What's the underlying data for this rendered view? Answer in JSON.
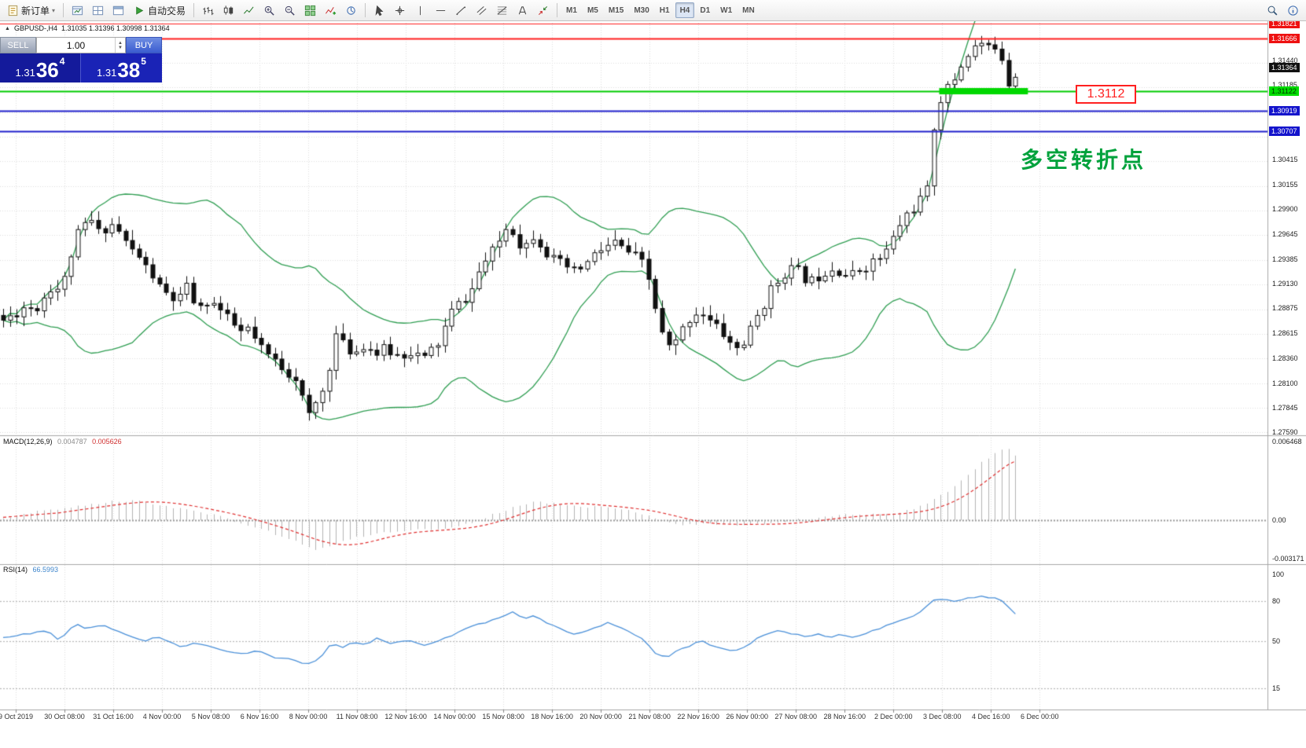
{
  "toolbar": {
    "new_order_label": "新订单",
    "autotrade_label": "自动交易",
    "left_icons": [
      {
        "name": "new-chart-icon",
        "type": "chartwin"
      },
      {
        "name": "profiles-icon",
        "type": "layout"
      },
      {
        "name": "data-window-icon",
        "type": "window"
      }
    ],
    "chart_tools": [
      {
        "name": "bar-chart-icon",
        "type": "bars"
      },
      {
        "name": "candlestick-chart-icon",
        "type": "candles"
      },
      {
        "name": "line-chart-icon",
        "type": "line"
      },
      {
        "name": "zoom-in-icon",
        "type": "zoomin"
      },
      {
        "name": "zoom-out-icon",
        "type": "zoomout"
      },
      {
        "name": "tile-windows-icon",
        "type": "grid"
      },
      {
        "name": "indicators-icon",
        "type": "indicator"
      },
      {
        "name": "periods-icon",
        "type": "cycles"
      }
    ],
    "draw_tools": [
      {
        "name": "cursor-icon",
        "type": "cursor"
      },
      {
        "name": "crosshair-icon",
        "type": "crosshair"
      },
      {
        "name": "vertical-line-icon",
        "type": "vline"
      },
      {
        "name": "horizontal-line-icon",
        "type": "hline"
      },
      {
        "name": "trendline-icon",
        "type": "trend"
      },
      {
        "name": "equidistant-channel-icon",
        "type": "channel"
      },
      {
        "name": "fibonacci-icon",
        "type": "fib"
      },
      {
        "name": "text-icon",
        "type": "text"
      },
      {
        "name": "arrows-icon",
        "type": "arrows"
      }
    ],
    "timeframes": [
      "M1",
      "M5",
      "M15",
      "M30",
      "H1",
      "H4",
      "D1",
      "W1",
      "MN"
    ],
    "active_timeframe": "H4",
    "right_icons": [
      {
        "name": "search-icon",
        "type": "search"
      },
      {
        "name": "about-icon",
        "type": "about"
      }
    ]
  },
  "symbol_header": {
    "symbol": "GBPUSD-,H4",
    "ohlc": "1.31035 1.31396 1.30998 1.31364"
  },
  "trade_panel": {
    "sell_button": "SELL",
    "buy_button": "BUY",
    "lot_value": "1.00",
    "sell_price": {
      "big": "1.31",
      "pips": "36",
      "pipette": "4"
    },
    "buy_price": {
      "big": "1.31",
      "pips": "38",
      "pipette": "5"
    }
  },
  "annotation": {
    "text": "多空转折点"
  },
  "price_callout": {
    "text": "1.3112"
  },
  "macd_label": {
    "name": "MACD(12,26,9)",
    "main_value": "0.004787",
    "signal_value": "0.005626"
  },
  "rsi_label": {
    "name": "RSI(14)",
    "value": "66.5993"
  },
  "colors": {
    "bollinger": "#2f9e52",
    "candle_up": "#ffffff",
    "candle_down": "#111111",
    "candle_border": "#111111",
    "macd_hist": "#b4b4b4",
    "macd_signal": "#e03030",
    "rsi_line": "#4a90d9",
    "grid": "#dedede",
    "green_box": "#00d800",
    "divider": "#a8a8a8"
  },
  "chart_data": {
    "type": "candlestick",
    "symbol": "GBPUSD-",
    "timeframe": "H4",
    "ohlc": {
      "open": 1.31035,
      "high": 1.31396,
      "low": 1.30998,
      "close": 1.31364
    },
    "price_axis": {
      "min": 1.2756,
      "max": 1.3183,
      "ticks": [
        "1.31440",
        "1.31185",
        "1.30415",
        "1.30155",
        "1.29900",
        "1.29645",
        "1.29385",
        "1.29130",
        "1.28875",
        "1.28615",
        "1.28360",
        "1.28100",
        "1.27845",
        "1.27590"
      ],
      "line_labels": [
        {
          "text": "1.31821",
          "price": 1.31821,
          "bg": "#ee1111",
          "fg": "#ffffff"
        },
        {
          "text": "1.31666",
          "price": 1.31666,
          "bg": "#ee1111",
          "fg": "#ffffff"
        },
        {
          "text": "1.31364",
          "price": 1.31364,
          "bg": "#111111",
          "fg": "#ffffff"
        },
        {
          "text": "1.31122",
          "price": 1.31122,
          "bg": "#00dd00",
          "fg": "#003300"
        },
        {
          "text": "1.30919",
          "price": 1.30919,
          "bg": "#1414cc",
          "fg": "#ffffff"
        },
        {
          "text": "1.30707",
          "price": 1.30707,
          "bg": "#1414cc",
          "fg": "#ffffff"
        }
      ]
    },
    "hlines": [
      {
        "price": 1.31821,
        "color": "#ff2020",
        "width": 1
      },
      {
        "price": 1.31666,
        "color": "#ff2020",
        "width": 2
      },
      {
        "price": 1.31122,
        "color": "#00cc00",
        "width": 2
      },
      {
        "price": 1.30919,
        "color": "#2020cc",
        "width": 2
      },
      {
        "price": 1.30707,
        "color": "#2020cc",
        "width": 2
      }
    ],
    "green_box": {
      "price": 1.31122,
      "t1": 0.741,
      "t2": 0.811
    },
    "close_path": [
      [
        0.003,
        1.2875
      ],
      [
        0.012,
        1.2882
      ],
      [
        0.02,
        1.289
      ],
      [
        0.028,
        1.2886
      ],
      [
        0.035,
        1.29
      ],
      [
        0.042,
        1.2912
      ],
      [
        0.048,
        1.2905
      ],
      [
        0.053,
        1.2928
      ],
      [
        0.059,
        1.2958
      ],
      [
        0.065,
        1.2972
      ],
      [
        0.072,
        1.2978
      ],
      [
        0.078,
        1.2965
      ],
      [
        0.084,
        1.2972
      ],
      [
        0.09,
        1.2975
      ],
      [
        0.096,
        1.2962
      ],
      [
        0.102,
        1.295
      ],
      [
        0.109,
        1.2942
      ],
      [
        0.115,
        1.293
      ],
      [
        0.121,
        1.292
      ],
      [
        0.127,
        1.2906
      ],
      [
        0.134,
        1.29
      ],
      [
        0.14,
        1.2892
      ],
      [
        0.146,
        1.2912
      ],
      [
        0.152,
        1.2896
      ],
      [
        0.158,
        1.2886
      ],
      [
        0.164,
        1.2896
      ],
      [
        0.171,
        1.289
      ],
      [
        0.177,
        1.288
      ],
      [
        0.183,
        1.2872
      ],
      [
        0.189,
        1.2862
      ],
      [
        0.196,
        1.2866
      ],
      [
        0.202,
        1.2852
      ],
      [
        0.208,
        1.2842
      ],
      [
        0.214,
        1.2836
      ],
      [
        0.22,
        1.283
      ],
      [
        0.226,
        1.2822
      ],
      [
        0.233,
        1.2816
      ],
      [
        0.239,
        1.2792
      ],
      [
        0.243,
        1.2774
      ],
      [
        0.248,
        1.2786
      ],
      [
        0.254,
        1.28
      ],
      [
        0.259,
        1.2822
      ],
      [
        0.264,
        1.2862
      ],
      [
        0.269,
        1.2852
      ],
      [
        0.274,
        1.2846
      ],
      [
        0.279,
        1.284
      ],
      [
        0.286,
        1.285
      ],
      [
        0.292,
        1.2845
      ],
      [
        0.298,
        1.284
      ],
      [
        0.304,
        1.2846
      ],
      [
        0.31,
        1.284
      ],
      [
        0.316,
        1.2838
      ],
      [
        0.323,
        1.2843
      ],
      [
        0.329,
        1.284
      ],
      [
        0.335,
        1.2835
      ],
      [
        0.341,
        1.2846
      ],
      [
        0.347,
        1.2852
      ],
      [
        0.354,
        1.288
      ],
      [
        0.36,
        1.289
      ],
      [
        0.366,
        1.2896
      ],
      [
        0.372,
        1.2906
      ],
      [
        0.378,
        1.2926
      ],
      [
        0.385,
        1.294
      ],
      [
        0.391,
        1.295
      ],
      [
        0.397,
        1.2966
      ],
      [
        0.402,
        1.2976
      ],
      [
        0.407,
        1.296
      ],
      [
        0.412,
        1.295
      ],
      [
        0.417,
        1.2956
      ],
      [
        0.422,
        1.2966
      ],
      [
        0.428,
        1.295
      ],
      [
        0.434,
        1.294
      ],
      [
        0.44,
        1.2935
      ],
      [
        0.447,
        1.293
      ],
      [
        0.453,
        1.2925
      ],
      [
        0.459,
        1.293
      ],
      [
        0.465,
        1.2936
      ],
      [
        0.471,
        1.2946
      ],
      [
        0.478,
        1.295
      ],
      [
        0.484,
        1.2956
      ],
      [
        0.49,
        1.295
      ],
      [
        0.496,
        1.2945
      ],
      [
        0.502,
        1.294
      ],
      [
        0.509,
        1.293
      ],
      [
        0.515,
        1.29
      ],
      [
        0.52,
        1.287
      ],
      [
        0.525,
        1.285
      ],
      [
        0.53,
        1.2845
      ],
      [
        0.535,
        1.2856
      ],
      [
        0.54,
        1.287
      ],
      [
        0.546,
        1.288
      ],
      [
        0.552,
        1.2886
      ],
      [
        0.558,
        1.2876
      ],
      [
        0.564,
        1.287
      ],
      [
        0.571,
        1.286
      ],
      [
        0.577,
        1.285
      ],
      [
        0.583,
        1.2845
      ],
      [
        0.589,
        1.2856
      ],
      [
        0.596,
        1.2876
      ],
      [
        0.602,
        1.289
      ],
      [
        0.608,
        1.2906
      ],
      [
        0.614,
        1.2916
      ],
      [
        0.62,
        1.2926
      ],
      [
        0.627,
        1.293
      ],
      [
        0.633,
        1.292
      ],
      [
        0.639,
        1.2915
      ],
      [
        0.645,
        1.292
      ],
      [
        0.651,
        1.2926
      ],
      [
        0.658,
        1.293
      ],
      [
        0.664,
        1.2925
      ],
      [
        0.67,
        1.292
      ],
      [
        0.676,
        1.2926
      ],
      [
        0.682,
        1.293
      ],
      [
        0.689,
        1.2936
      ],
      [
        0.695,
        1.294
      ],
      [
        0.701,
        1.295
      ],
      [
        0.707,
        1.2966
      ],
      [
        0.713,
        1.2982
      ],
      [
        0.72,
        1.299
      ],
      [
        0.726,
        1.3
      ],
      [
        0.732,
        1.301
      ],
      [
        0.738,
        1.3092
      ],
      [
        0.744,
        1.311
      ],
      [
        0.751,
        1.312
      ],
      [
        0.757,
        1.3136
      ],
      [
        0.763,
        1.315
      ],
      [
        0.769,
        1.3158
      ],
      [
        0.775,
        1.3162
      ],
      [
        0.78,
        1.3155
      ],
      [
        0.785,
        1.316
      ],
      [
        0.79,
        1.315
      ],
      [
        0.795,
        1.312
      ],
      [
        0.8,
        1.3128
      ],
      [
        0.806,
        1.3136
      ]
    ],
    "macd": {
      "range_top": 0.006468,
      "range_bottom": -0.003171,
      "axis": [
        {
          "text": "0.006468",
          "value": 0.006468
        },
        {
          "text": "0.00",
          "value": 0
        },
        {
          "text": "-0.003171",
          "value": -0.003171
        }
      ],
      "path": [
        [
          0.0,
          0.0002
        ],
        [
          0.03,
          0.0007
        ],
        [
          0.06,
          0.0011
        ],
        [
          0.085,
          0.0015
        ],
        [
          0.1,
          0.0016
        ],
        [
          0.115,
          0.0015
        ],
        [
          0.13,
          0.0012
        ],
        [
          0.15,
          0.0008
        ],
        [
          0.165,
          0.0005
        ],
        [
          0.18,
          0.0001
        ],
        [
          0.195,
          -0.0004
        ],
        [
          0.21,
          -0.0009
        ],
        [
          0.225,
          -0.0014
        ],
        [
          0.24,
          -0.0021
        ],
        [
          0.25,
          -0.0024
        ],
        [
          0.262,
          -0.0021
        ],
        [
          0.275,
          -0.0016
        ],
        [
          0.29,
          -0.0012
        ],
        [
          0.305,
          -0.001
        ],
        [
          0.32,
          -0.0008
        ],
        [
          0.335,
          -0.0008
        ],
        [
          0.35,
          -0.0007
        ],
        [
          0.365,
          -0.0004
        ],
        [
          0.38,
          0.0001
        ],
        [
          0.395,
          0.0007
        ],
        [
          0.405,
          0.0011
        ],
        [
          0.415,
          0.0014
        ],
        [
          0.425,
          0.0015
        ],
        [
          0.435,
          0.0014
        ],
        [
          0.45,
          0.0013
        ],
        [
          0.465,
          0.0011
        ],
        [
          0.48,
          0.001
        ],
        [
          0.495,
          0.0008
        ],
        [
          0.505,
          0.0006
        ],
        [
          0.515,
          0.0003
        ],
        [
          0.525,
          -0.0001
        ],
        [
          0.535,
          -0.0003
        ],
        [
          0.545,
          -0.0004
        ],
        [
          0.56,
          -0.0003
        ],
        [
          0.575,
          -0.0003
        ],
        [
          0.59,
          -0.0004
        ],
        [
          0.605,
          -0.0003
        ],
        [
          0.62,
          -0.0001
        ],
        [
          0.635,
          0.0001
        ],
        [
          0.65,
          0.0003
        ],
        [
          0.665,
          0.0004
        ],
        [
          0.68,
          0.0005
        ],
        [
          0.695,
          0.0005
        ],
        [
          0.71,
          0.0007
        ],
        [
          0.722,
          0.001
        ],
        [
          0.734,
          0.0015
        ],
        [
          0.745,
          0.0022
        ],
        [
          0.755,
          0.003
        ],
        [
          0.765,
          0.0039
        ],
        [
          0.775,
          0.0048
        ],
        [
          0.785,
          0.0055
        ],
        [
          0.792,
          0.006
        ],
        [
          0.797,
          0.0058
        ],
        [
          0.801,
          0.0053
        ],
        [
          0.806,
          0.0048
        ]
      ]
    },
    "rsi": {
      "axis": [
        {
          "text": "100",
          "value": 100
        },
        {
          "text": "80",
          "value": 80
        },
        {
          "text": "50",
          "value": 50
        },
        {
          "text": "15",
          "value": 15
        }
      ],
      "levels": [
        80,
        50,
        15
      ],
      "path": [
        [
          0.0,
          52
        ],
        [
          0.019,
          55
        ],
        [
          0.037,
          58
        ],
        [
          0.047,
          50
        ],
        [
          0.059,
          63
        ],
        [
          0.068,
          60
        ],
        [
          0.081,
          62
        ],
        [
          0.099,
          55
        ],
        [
          0.112,
          50
        ],
        [
          0.124,
          53
        ],
        [
          0.143,
          46
        ],
        [
          0.155,
          49
        ],
        [
          0.174,
          44
        ],
        [
          0.192,
          40
        ],
        [
          0.205,
          43
        ],
        [
          0.217,
          38
        ],
        [
          0.23,
          36
        ],
        [
          0.242,
          33
        ],
        [
          0.251,
          36
        ],
        [
          0.261,
          48
        ],
        [
          0.27,
          45
        ],
        [
          0.279,
          50
        ],
        [
          0.288,
          47
        ],
        [
          0.298,
          52
        ],
        [
          0.31,
          48
        ],
        [
          0.323,
          51
        ],
        [
          0.335,
          47
        ],
        [
          0.347,
          50
        ],
        [
          0.36,
          56
        ],
        [
          0.372,
          61
        ],
        [
          0.385,
          64
        ],
        [
          0.397,
          69
        ],
        [
          0.403,
          72
        ],
        [
          0.413,
          67
        ],
        [
          0.422,
          70
        ],
        [
          0.431,
          64
        ],
        [
          0.44,
          60
        ],
        [
          0.453,
          55
        ],
        [
          0.462,
          57
        ],
        [
          0.471,
          61
        ],
        [
          0.481,
          64
        ],
        [
          0.49,
          60
        ],
        [
          0.499,
          55
        ],
        [
          0.509,
          50
        ],
        [
          0.518,
          40
        ],
        [
          0.526,
          37
        ],
        [
          0.533,
          42
        ],
        [
          0.543,
          46
        ],
        [
          0.552,
          51
        ],
        [
          0.561,
          47
        ],
        [
          0.571,
          44
        ],
        [
          0.58,
          42
        ],
        [
          0.589,
          47
        ],
        [
          0.599,
          53
        ],
        [
          0.608,
          56
        ],
        [
          0.617,
          58
        ],
        [
          0.627,
          55
        ],
        [
          0.636,
          53
        ],
        [
          0.645,
          56
        ],
        [
          0.654,
          52
        ],
        [
          0.664,
          55
        ],
        [
          0.673,
          53
        ],
        [
          0.682,
          56
        ],
        [
          0.692,
          59
        ],
        [
          0.701,
          62
        ],
        [
          0.71,
          65
        ],
        [
          0.72,
          69
        ],
        [
          0.729,
          73
        ],
        [
          0.735,
          80
        ],
        [
          0.744,
          82
        ],
        [
          0.754,
          80
        ],
        [
          0.763,
          82
        ],
        [
          0.772,
          84
        ],
        [
          0.78,
          83
        ],
        [
          0.787,
          82
        ],
        [
          0.793,
          78
        ],
        [
          0.799,
          71
        ],
        [
          0.806,
          66.6
        ]
      ]
    },
    "time_axis": [
      "9 Oct 2019",
      "30 Oct 08:00",
      "31 Oct 16:00",
      "4 Nov 00:00",
      "5 Nov 08:00",
      "6 Nov 16:00",
      "8 Nov 00:00",
      "11 Nov 08:00",
      "12 Nov 16:00",
      "14 Nov 00:00",
      "15 Nov 08:00",
      "18 Nov 16:00",
      "20 Nov 00:00",
      "21 Nov 08:00",
      "22 Nov 16:00",
      "26 Nov 00:00",
      "27 Nov 08:00",
      "28 Nov 16:00",
      "2 Dec 00:00",
      "3 Dec 08:00",
      "4 Dec 16:00",
      "6 Dec 00:00"
    ]
  }
}
